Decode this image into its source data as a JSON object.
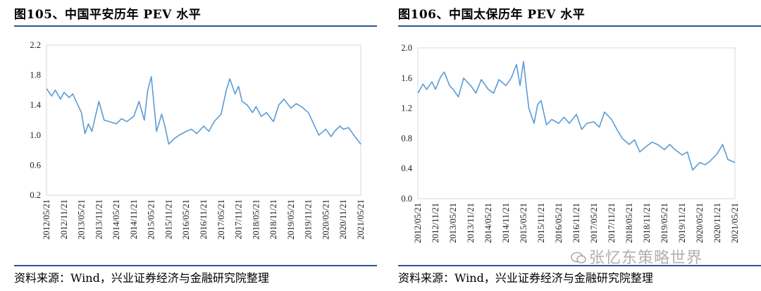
{
  "charts": [
    {
      "title": "图105、中国平安历年 PEV 水平",
      "source": "资料来源：Wind，兴业证券经济与金融研究院整理"
    },
    {
      "title": "图106、中国太保历年 PEV 水平",
      "source": "资料来源：Wind，兴业证券经济与金融研究院整理"
    }
  ],
  "watermark": "张忆东策略世界",
  "colors": {
    "line": "#5b9bd5",
    "rule": "#2f5597",
    "grid": "#d9d9d9"
  },
  "chart_data": [
    {
      "type": "line",
      "title": "图105、中国平安历年 PEV 水平",
      "xlabel": "",
      "ylabel": "",
      "ylim": [
        0.2,
        2.2
      ],
      "yticks": [
        "0.2",
        "0.6",
        "1.0",
        "1.4",
        "1.8",
        "2.2"
      ],
      "yticks_values": [
        0.2,
        0.6,
        1.0,
        1.4,
        1.8,
        2.2
      ],
      "xticks": [
        "2012/05/21",
        "2012/11/21",
        "2013/05/21",
        "2013/11/21",
        "2014/05/21",
        "2014/11/21",
        "2015/05/21",
        "2015/11/21",
        "2016/05/21",
        "2016/11/21",
        "2017/05/21",
        "2017/11/21",
        "2018/05/21",
        "2018/11/21",
        "2019/05/21",
        "2019/11/21",
        "2020/05/21",
        "2020/11/21",
        "2021/05/21"
      ],
      "x": [
        0,
        0.3,
        0.5,
        0.8,
        1,
        1.3,
        1.5,
        1.8,
        2,
        2.2,
        2.4,
        2.6,
        2.8,
        3,
        3.3,
        3.6,
        4,
        4.3,
        4.6,
        5,
        5.3,
        5.6,
        5.8,
        6,
        6.1,
        6.3,
        6.6,
        6.8,
        7,
        7.3,
        7.6,
        8,
        8.3,
        8.6,
        9,
        9.3,
        9.6,
        10,
        10.3,
        10.5,
        10.8,
        11,
        11.2,
        11.5,
        11.8,
        12,
        12.3,
        12.6,
        13,
        13.3,
        13.6,
        14,
        14.3,
        14.6,
        15,
        15.3,
        15.6,
        16,
        16.3,
        16.5,
        16.8,
        17,
        17.3,
        17.6,
        18
      ],
      "values": [
        1.62,
        1.52,
        1.6,
        1.48,
        1.57,
        1.5,
        1.55,
        1.4,
        1.3,
        1.02,
        1.15,
        1.05,
        1.25,
        1.45,
        1.2,
        1.18,
        1.15,
        1.22,
        1.18,
        1.25,
        1.45,
        1.2,
        1.6,
        1.78,
        1.55,
        1.05,
        1.28,
        1.1,
        0.88,
        0.95,
        1.0,
        1.05,
        1.08,
        1.02,
        1.12,
        1.05,
        1.18,
        1.28,
        1.6,
        1.75,
        1.55,
        1.65,
        1.45,
        1.4,
        1.3,
        1.38,
        1.25,
        1.3,
        1.18,
        1.4,
        1.48,
        1.36,
        1.42,
        1.38,
        1.3,
        1.15,
        1.0,
        1.08,
        0.98,
        1.05,
        1.12,
        1.08,
        1.1,
        1.0,
        0.88
      ]
    },
    {
      "type": "line",
      "title": "图106、中国太保历年 PEV 水平",
      "xlabel": "",
      "ylabel": "",
      "ylim": [
        0.0,
        2.0
      ],
      "yticks": [
        "0.0",
        "0.4",
        "0.8",
        "1.2",
        "1.6",
        "2.0"
      ],
      "yticks_values": [
        0.0,
        0.4,
        0.8,
        1.2,
        1.6,
        2.0
      ],
      "xticks": [
        "2012/05/21",
        "2012/11/21",
        "2013/05/21",
        "2013/11/21",
        "2014/05/21",
        "2014/11/21",
        "2015/05/21",
        "2015/11/21",
        "2016/05/21",
        "2016/11/21",
        "2017/05/21",
        "2017/11/21",
        "2018/05/21",
        "2018/11/21",
        "2019/05/21",
        "2019/11/21",
        "2020/05/21",
        "2020/11/21",
        "2021/05/21"
      ],
      "x": [
        0,
        0.3,
        0.5,
        0.8,
        1,
        1.3,
        1.5,
        1.8,
        2,
        2.3,
        2.6,
        3,
        3.3,
        3.6,
        4,
        4.3,
        4.6,
        5,
        5.3,
        5.6,
        5.8,
        6,
        6.1,
        6.3,
        6.6,
        6.8,
        7,
        7.3,
        7.6,
        8,
        8.3,
        8.6,
        9,
        9.3,
        9.6,
        10,
        10.3,
        10.6,
        11,
        11.3,
        11.6,
        12,
        12.3,
        12.6,
        13,
        13.3,
        13.6,
        14,
        14.3,
        14.6,
        15,
        15.3,
        15.6,
        16,
        16.3,
        16.6,
        17,
        17.3,
        17.6,
        18
      ],
      "values": [
        1.4,
        1.52,
        1.45,
        1.55,
        1.45,
        1.62,
        1.68,
        1.5,
        1.45,
        1.35,
        1.6,
        1.5,
        1.4,
        1.58,
        1.45,
        1.4,
        1.58,
        1.5,
        1.6,
        1.78,
        1.5,
        1.82,
        1.6,
        1.2,
        1.0,
        1.25,
        1.3,
        0.98,
        1.05,
        1.0,
        1.08,
        1.0,
        1.12,
        0.92,
        1.0,
        1.02,
        0.95,
        1.15,
        1.05,
        0.92,
        0.8,
        0.72,
        0.78,
        0.62,
        0.7,
        0.75,
        0.72,
        0.65,
        0.72,
        0.65,
        0.58,
        0.62,
        0.38,
        0.48,
        0.45,
        0.5,
        0.6,
        0.72,
        0.52,
        0.48
      ]
    }
  ]
}
